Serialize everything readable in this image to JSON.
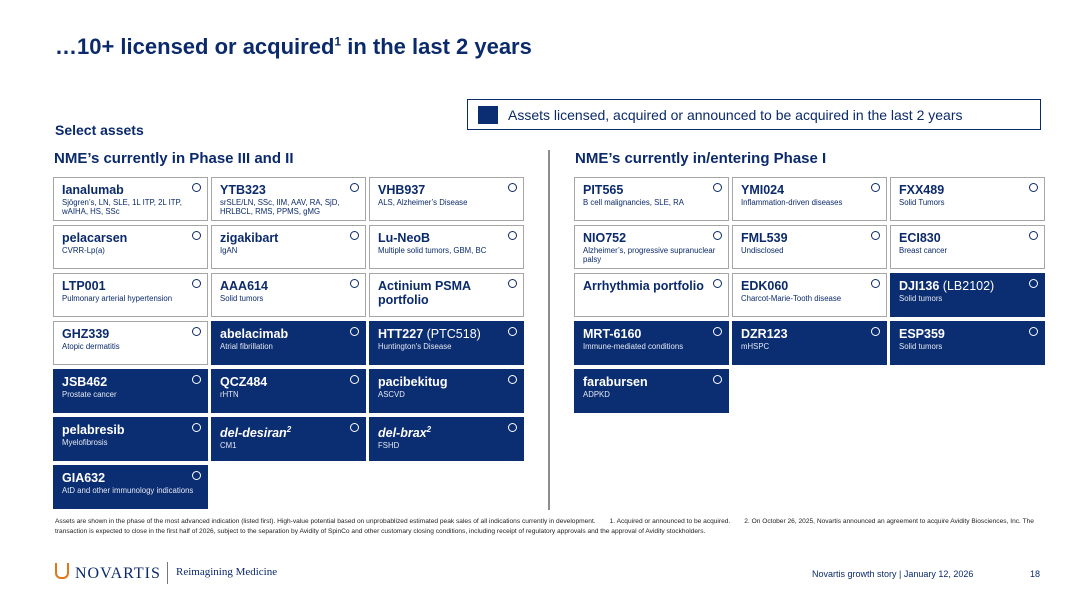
{
  "header": {
    "title_pre": "…10+ licensed or acquired",
    "title_sup": "1",
    "title_post": " in the last 2 years"
  },
  "legend": {
    "label": "Assets licensed, acquired or announced to be acquired in the last 2 years"
  },
  "section_label": "Select assets",
  "panels": [
    {
      "heading": "NME’s currently in Phase III and II",
      "cards": [
        {
          "name": "Ianalumab",
          "desc": "Sjögren’s, LN, SLE, 1L ITP, 2L ITP, wAIHA, HS, SSc",
          "filled": false
        },
        {
          "name": "YTB323",
          "desc": "srSLE/LN, SSc, IIM, AAV, RA, SjD, HRLBCL, RMS, PPMS, gMG",
          "filled": false
        },
        {
          "name": "VHB937",
          "desc": "ALS, Alzheimer’s Disease",
          "filled": false
        },
        {
          "name": "pelacarsen",
          "desc": "CVRR-Lp(a)",
          "filled": false
        },
        {
          "name": "zigakibart",
          "desc": "IgAN",
          "filled": false
        },
        {
          "name": "Lu-NeoB",
          "desc": "Multiple solid tumors, GBM, BC",
          "filled": false
        },
        {
          "name": "LTP001",
          "desc": "Pulmonary arterial hypertension",
          "filled": false
        },
        {
          "name": "AAA614",
          "desc": "Solid tumors",
          "filled": false
        },
        {
          "name": "Actinium PSMA portfolio",
          "filled": false
        },
        {
          "name": "GHZ339",
          "desc": "Atopic dermatitis",
          "filled": false
        },
        {
          "name": "abelacimab",
          "desc": "Atrial fibrillation",
          "filled": true
        },
        {
          "name": "HTT227",
          "suffix": " (PTC518)",
          "desc": "Huntington's Disease",
          "filled": true
        },
        {
          "name": "JSB462",
          "desc": "Prostate cancer",
          "filled": true
        },
        {
          "name": "QCZ484",
          "desc": "rHTN",
          "filled": true
        },
        {
          "name": "pacibekitug",
          "desc": "ASCVD",
          "filled": true
        },
        {
          "name": "pelabresib",
          "desc": "Myelofibrosis",
          "filled": true
        },
        {
          "name": "del-desiran",
          "sup": "2",
          "desc": "CM1",
          "filled": true,
          "italic": true
        },
        {
          "name": "del-brax",
          "sup": "2",
          "desc": "FSHD",
          "filled": true,
          "italic": true
        },
        {
          "name": "GIA632",
          "desc": "AtD and other immunology indications",
          "filled": true
        }
      ]
    },
    {
      "heading": "NME’s currently in/entering Phase I",
      "cards": [
        {
          "name": "PIT565",
          "desc": "B cell malignancies, SLE, RA",
          "filled": false
        },
        {
          "name": "YMI024",
          "desc": "Inflammation-driven diseases",
          "filled": false
        },
        {
          "name": "FXX489",
          "desc": "Solid Tumors",
          "filled": false
        },
        {
          "name": "NIO752",
          "desc": "Alzheimer’s, progressive supranuclear palsy",
          "filled": false
        },
        {
          "name": "FML539",
          "desc": "Undisclosed",
          "filled": false
        },
        {
          "name": "ECI830",
          "desc": "Breast cancer",
          "filled": false
        },
        {
          "name": "Arrhythmia portfolio",
          "filled": false
        },
        {
          "name": "EDK060",
          "desc": "Charcot-Marie-Tooth disease",
          "filled": false
        },
        {
          "name": "DJI136",
          "suffix": " (LB2102)",
          "desc": "Solid tumors",
          "filled": true
        },
        {
          "name": "MRT-6160",
          "desc": "Immune-mediated conditions",
          "filled": true
        },
        {
          "name": "DZR123",
          "desc": "mHSPC",
          "filled": true
        },
        {
          "name": "ESP359",
          "desc": "Solid tumors",
          "filled": true
        },
        {
          "name": "farabursen",
          "desc": "ADPKD",
          "filled": true
        }
      ]
    }
  ],
  "footnotes": [
    "Assets are shown in the phase of the most advanced indication (listed first). High-value potential based on unprobablized estimated peak sales of all indications currently in development.",
    "1. Acquired or announced to be acquired.",
    "2. On October 26, 2025, Novartis announced an agreement to acquire Avidity Biosciences, Inc. The transaction is expected to close in the first half of 2026, subject to the separation by Avidity of SpinCo and other customary closing conditions, including receipt of regulatory approvals and the approval of Avidity stockholders."
  ],
  "footer": {
    "logo": "NOVARTIS",
    "tagline": "Reimagining Medicine",
    "source": "Novartis growth story | January 12, 2026",
    "page": "18"
  }
}
